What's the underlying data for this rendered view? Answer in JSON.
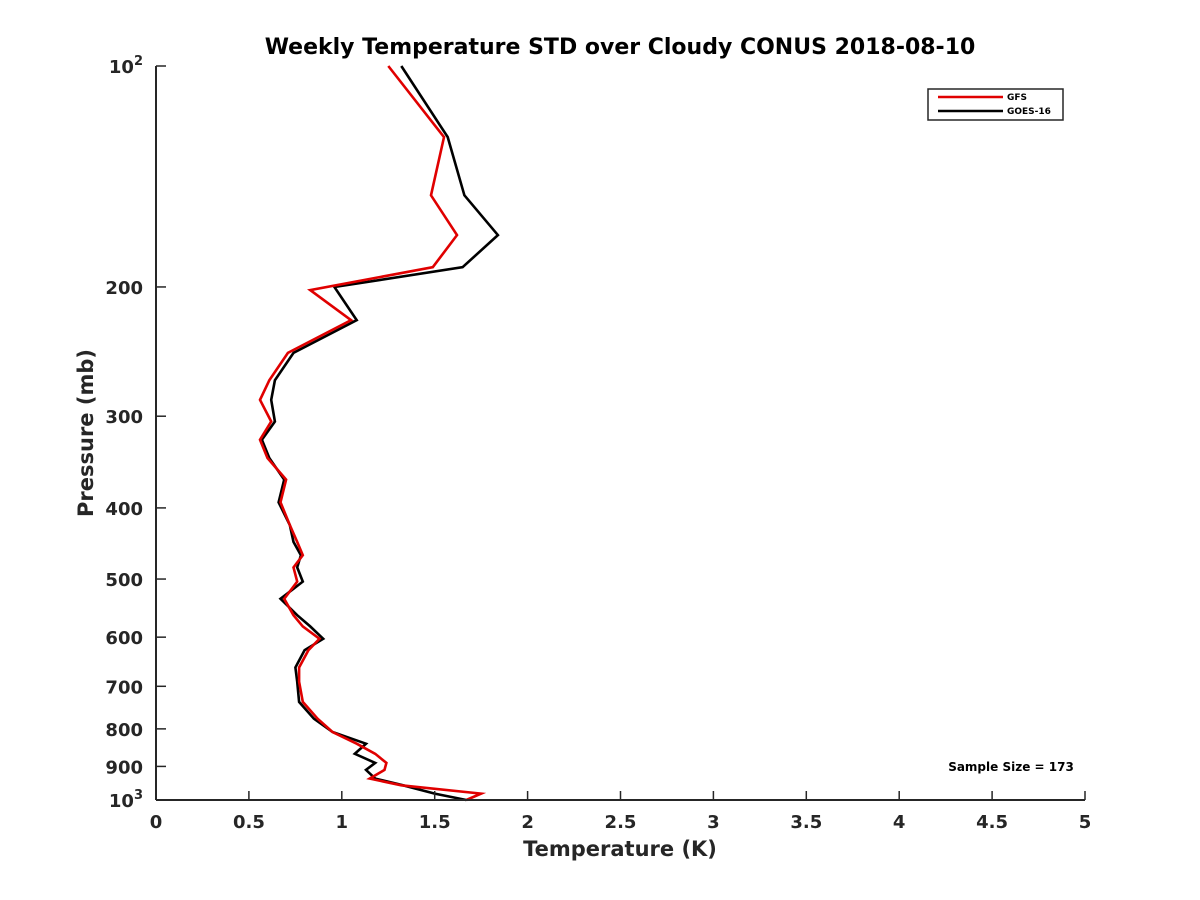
{
  "chart_data": {
    "type": "line",
    "title": "Weekly Temperature STD over Cloudy CONUS 2018-08-10",
    "xlabel": "Temperature (K)",
    "ylabel": "Pressure (mb)",
    "xlim": [
      0,
      5
    ],
    "ylim": [
      100,
      1000
    ],
    "yscale": "log",
    "y_reversed": true,
    "xticks": [
      "0",
      "0.5",
      "1",
      "1.5",
      "2",
      "2.5",
      "3",
      "3.5",
      "4",
      "4.5",
      "5"
    ],
    "xtick_values": [
      0,
      0.5,
      1,
      1.5,
      2,
      2.5,
      3,
      3.5,
      4,
      4.5,
      5
    ],
    "yticks": [
      {
        "value": 100,
        "label": "10",
        "sup": "2"
      },
      {
        "value": 200,
        "label": "200",
        "sup": ""
      },
      {
        "value": 300,
        "label": "300",
        "sup": ""
      },
      {
        "value": 400,
        "label": "400",
        "sup": ""
      },
      {
        "value": 500,
        "label": "500",
        "sup": ""
      },
      {
        "value": 600,
        "label": "600",
        "sup": ""
      },
      {
        "value": 700,
        "label": "700",
        "sup": ""
      },
      {
        "value": 800,
        "label": "800",
        "sup": ""
      },
      {
        "value": 900,
        "label": "900",
        "sup": ""
      },
      {
        "value": 1000,
        "label": "10",
        "sup": "3"
      }
    ],
    "grid": false,
    "legend_position": "top-right",
    "annotation": "Sample Size = 173",
    "series": [
      {
        "name": "GFS",
        "color": "#e00000",
        "points": [
          [
            1.25,
            100
          ],
          [
            1.55,
            125
          ],
          [
            1.48,
            150
          ],
          [
            1.62,
            170
          ],
          [
            1.49,
            188
          ],
          [
            0.83,
            202
          ],
          [
            1.05,
            222
          ],
          [
            0.71,
            246
          ],
          [
            0.61,
            268
          ],
          [
            0.56,
            285
          ],
          [
            0.62,
            305
          ],
          [
            0.56,
            323
          ],
          [
            0.6,
            342
          ],
          [
            0.7,
            366
          ],
          [
            0.67,
            393
          ],
          [
            0.72,
            422
          ],
          [
            0.76,
            445
          ],
          [
            0.79,
            464
          ],
          [
            0.74,
            482
          ],
          [
            0.76,
            504
          ],
          [
            0.69,
            532
          ],
          [
            0.74,
            560
          ],
          [
            0.79,
            580
          ],
          [
            0.88,
            603
          ],
          [
            0.82,
            625
          ],
          [
            0.77,
            660
          ],
          [
            0.77,
            690
          ],
          [
            0.79,
            735
          ],
          [
            0.87,
            775
          ],
          [
            0.95,
            808
          ],
          [
            1.08,
            838
          ],
          [
            1.18,
            865
          ],
          [
            1.24,
            890
          ],
          [
            1.23,
            910
          ],
          [
            1.15,
            935
          ],
          [
            1.32,
            955
          ],
          [
            1.75,
            980
          ],
          [
            1.67,
            1000
          ]
        ]
      },
      {
        "name": "GOES-16",
        "color": "#000000",
        "points": [
          [
            1.32,
            100
          ],
          [
            1.57,
            125
          ],
          [
            1.66,
            150
          ],
          [
            1.84,
            170
          ],
          [
            1.65,
            188
          ],
          [
            0.96,
            200
          ],
          [
            1.08,
            222
          ],
          [
            0.74,
            246
          ],
          [
            0.64,
            268
          ],
          [
            0.62,
            285
          ],
          [
            0.64,
            305
          ],
          [
            0.57,
            323
          ],
          [
            0.61,
            342
          ],
          [
            0.69,
            366
          ],
          [
            0.66,
            393
          ],
          [
            0.72,
            422
          ],
          [
            0.74,
            445
          ],
          [
            0.78,
            464
          ],
          [
            0.76,
            482
          ],
          [
            0.79,
            504
          ],
          [
            0.67,
            532
          ],
          [
            0.76,
            560
          ],
          [
            0.83,
            580
          ],
          [
            0.9,
            603
          ],
          [
            0.8,
            625
          ],
          [
            0.75,
            660
          ],
          [
            0.76,
            690
          ],
          [
            0.77,
            735
          ],
          [
            0.85,
            775
          ],
          [
            0.95,
            808
          ],
          [
            1.13,
            838
          ],
          [
            1.07,
            865
          ],
          [
            1.18,
            890
          ],
          [
            1.13,
            910
          ],
          [
            1.18,
            935
          ],
          [
            1.33,
            955
          ],
          [
            1.5,
            980
          ],
          [
            1.67,
            1000
          ]
        ]
      }
    ]
  }
}
